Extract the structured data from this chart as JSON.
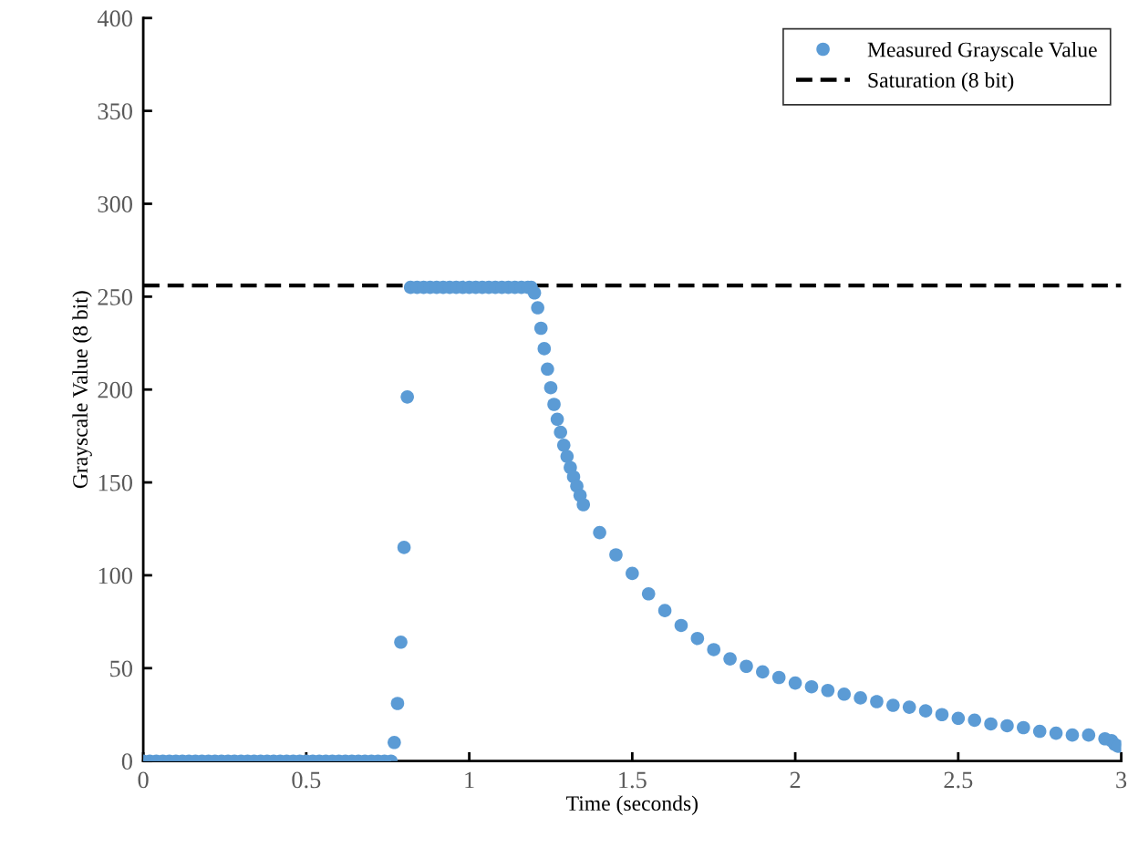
{
  "chart_data": {
    "type": "scatter",
    "xlabel": "Time (seconds)",
    "ylabel": "Grayscale Value (8 bit)",
    "xlim": [
      0,
      3
    ],
    "ylim": [
      0,
      400
    ],
    "xticks": [
      0,
      0.5,
      1,
      1.5,
      2,
      2.5,
      3
    ],
    "yticks": [
      0,
      50,
      100,
      150,
      200,
      250,
      300,
      350,
      400
    ],
    "grid": false,
    "legend": "top right",
    "marker": "circle",
    "series": [
      {
        "name": "Measured Grayscale Value",
        "color": "#5b9bd5",
        "x": [
          0,
          0.02,
          0.04,
          0.06,
          0.08,
          0.1,
          0.12,
          0.14,
          0.16,
          0.18,
          0.2,
          0.22,
          0.24,
          0.26,
          0.28,
          0.3,
          0.32,
          0.34,
          0.36,
          0.38,
          0.4,
          0.42,
          0.44,
          0.46,
          0.48,
          0.5,
          0.52,
          0.54,
          0.56,
          0.58,
          0.6,
          0.62,
          0.64,
          0.66,
          0.68,
          0.7,
          0.72,
          0.74,
          0.76,
          0.77,
          0.78,
          0.79,
          0.8,
          0.81,
          0.82,
          0.84,
          0.86,
          0.88,
          0.9,
          0.92,
          0.94,
          0.96,
          0.98,
          1.0,
          1.02,
          1.04,
          1.06,
          1.08,
          1.1,
          1.12,
          1.14,
          1.16,
          1.18,
          1.19,
          1.2,
          1.21,
          1.22,
          1.23,
          1.24,
          1.25,
          1.26,
          1.27,
          1.28,
          1.29,
          1.3,
          1.31,
          1.32,
          1.33,
          1.34,
          1.35,
          1.4,
          1.45,
          1.5,
          1.55,
          1.6,
          1.65,
          1.7,
          1.75,
          1.8,
          1.85,
          1.9,
          1.95,
          2.0,
          2.05,
          2.1,
          2.15,
          2.2,
          2.25,
          2.3,
          2.35,
          2.4,
          2.45,
          2.5,
          2.55,
          2.6,
          2.65,
          2.7,
          2.75,
          2.8,
          2.85,
          2.9,
          2.95,
          2.97,
          2.98,
          2.99
        ],
        "values": [
          0,
          0,
          0,
          0,
          0,
          0,
          0,
          0,
          0,
          0,
          0,
          0,
          0,
          0,
          0,
          0,
          0,
          0,
          0,
          0,
          0,
          0,
          0,
          0,
          0,
          0,
          0,
          0,
          0,
          0,
          0,
          0,
          0,
          0,
          0,
          0,
          0,
          0,
          0,
          10,
          31,
          64,
          115,
          196,
          255,
          255,
          255,
          255,
          255,
          255,
          255,
          255,
          255,
          255,
          255,
          255,
          255,
          255,
          255,
          255,
          255,
          255,
          255,
          255,
          252,
          244,
          233,
          222,
          211,
          201,
          192,
          184,
          177,
          170,
          164,
          158,
          153,
          148,
          143,
          138,
          123,
          111,
          101,
          90,
          81,
          73,
          66,
          60,
          55,
          51,
          48,
          45,
          42,
          40,
          38,
          36,
          34,
          32,
          30,
          29,
          27,
          25,
          23,
          22,
          20,
          19,
          18,
          16,
          15,
          14,
          14,
          12,
          11,
          9,
          8
        ]
      }
    ],
    "ref_lines": [
      {
        "axis": "y",
        "value": 256,
        "label": "Saturation (8 bit)",
        "color": "#000000",
        "line_style": "dashed"
      }
    ]
  }
}
